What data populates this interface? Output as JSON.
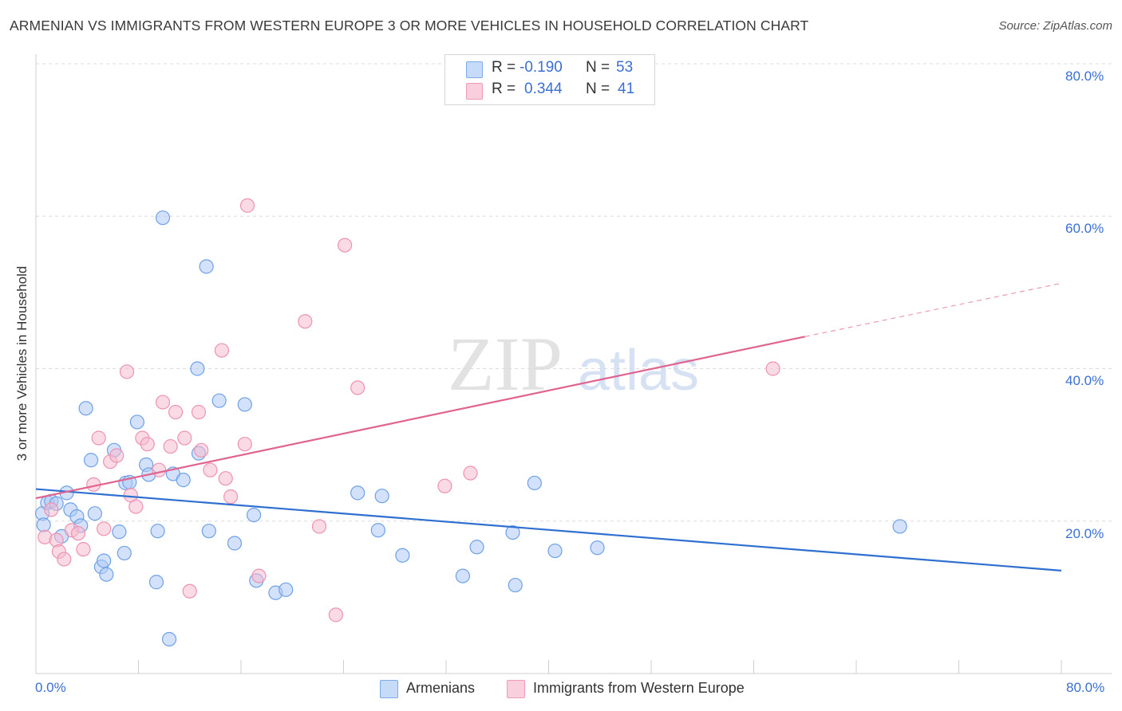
{
  "title": "ARMENIAN VS IMMIGRANTS FROM WESTERN EUROPE 3 OR MORE VEHICLES IN HOUSEHOLD CORRELATION CHART",
  "source": "Source: ZipAtlas.com",
  "watermark": {
    "zip": "ZIP",
    "atlas": "atlas"
  },
  "legend": {
    "rows": [
      {
        "r_label": "R =",
        "r_value": "-0.190",
        "n_label": "N =",
        "n_value": "53",
        "color": "#aecbf5"
      },
      {
        "r_label": "R =",
        "r_value": "0.344",
        "n_label": "N =",
        "n_value": "41",
        "color": "#f6bcd0"
      }
    ]
  },
  "bottom_legend": {
    "armenians": "Armenians",
    "immigrants": "Immigrants from Western Europe"
  },
  "axis": {
    "x_min_label": "0.0%",
    "x_max_label": "80.0%",
    "y_ticks": [
      "80.0%",
      "60.0%",
      "40.0%",
      "20.0%"
    ]
  },
  "chart_data": {
    "type": "scatter",
    "title": "ARMENIAN VS IMMIGRANTS FROM WESTERN EUROPE 3 OR MORE VEHICLES IN HOUSEHOLD CORRELATION CHART",
    "xlabel": "",
    "ylabel": "3 or more Vehicles in Household",
    "xlim": [
      0,
      80
    ],
    "ylim": [
      0,
      80
    ],
    "grid": true,
    "series": [
      {
        "name": "Armenians",
        "color": "#6fa1e6",
        "fill": "#aecbf5",
        "r": -0.19,
        "n": 53,
        "trend": {
          "x": [
            0,
            80
          ],
          "y": [
            24.2,
            13.5
          ]
        },
        "points": [
          [
            0.5,
            21.0
          ],
          [
            0.6,
            19.5
          ],
          [
            0.9,
            22.4
          ],
          [
            1.2,
            22.6
          ],
          [
            1.6,
            22.3
          ],
          [
            2.0,
            18.0
          ],
          [
            2.4,
            23.7
          ],
          [
            2.7,
            21.5
          ],
          [
            3.2,
            20.6
          ],
          [
            3.5,
            19.4
          ],
          [
            3.9,
            34.8
          ],
          [
            4.3,
            28.0
          ],
          [
            4.6,
            21.0
          ],
          [
            5.1,
            14.0
          ],
          [
            5.3,
            14.8
          ],
          [
            5.5,
            13.0
          ],
          [
            6.1,
            29.3
          ],
          [
            6.5,
            18.6
          ],
          [
            6.9,
            15.8
          ],
          [
            7.0,
            25.0
          ],
          [
            7.3,
            25.1
          ],
          [
            7.9,
            33.0
          ],
          [
            8.6,
            27.4
          ],
          [
            8.8,
            26.1
          ],
          [
            9.5,
            18.7
          ],
          [
            9.4,
            12.0
          ],
          [
            9.9,
            59.8
          ],
          [
            10.4,
            4.5
          ],
          [
            10.7,
            26.2
          ],
          [
            11.5,
            25.4
          ],
          [
            12.7,
            28.9
          ],
          [
            12.6,
            40.0
          ],
          [
            13.3,
            53.4
          ],
          [
            13.5,
            18.7
          ],
          [
            14.3,
            35.8
          ],
          [
            15.5,
            17.1
          ],
          [
            16.3,
            35.3
          ],
          [
            17.0,
            20.8
          ],
          [
            17.2,
            12.2
          ],
          [
            18.7,
            10.6
          ],
          [
            19.5,
            11.0
          ],
          [
            25.1,
            23.7
          ],
          [
            26.7,
            18.8
          ],
          [
            27.0,
            23.3
          ],
          [
            28.6,
            15.5
          ],
          [
            33.3,
            12.8
          ],
          [
            34.4,
            16.6
          ],
          [
            37.2,
            18.5
          ],
          [
            37.4,
            11.6
          ],
          [
            38.9,
            25.0
          ],
          [
            40.5,
            16.1
          ],
          [
            43.8,
            16.5
          ],
          [
            67.4,
            19.3
          ]
        ]
      },
      {
        "name": "Immigrants from Western Europe",
        "color": "#ee92b1",
        "fill": "#f6bcd0",
        "r": 0.344,
        "n": 41,
        "trend": {
          "x": [
            0,
            60
          ],
          "y": [
            23.0,
            44.2
          ],
          "dash_to": {
            "x": 80,
            "y": 51.2
          }
        },
        "points": [
          [
            0.7,
            17.9
          ],
          [
            1.2,
            21.5
          ],
          [
            1.6,
            17.5
          ],
          [
            1.8,
            16.0
          ],
          [
            2.2,
            15.0
          ],
          [
            2.8,
            18.8
          ],
          [
            3.3,
            18.4
          ],
          [
            3.7,
            16.3
          ],
          [
            4.5,
            24.8
          ],
          [
            4.9,
            30.9
          ],
          [
            5.3,
            19.0
          ],
          [
            5.8,
            27.8
          ],
          [
            6.3,
            28.6
          ],
          [
            7.1,
            39.6
          ],
          [
            7.4,
            23.4
          ],
          [
            7.8,
            21.9
          ],
          [
            8.3,
            30.9
          ],
          [
            8.7,
            30.1
          ],
          [
            9.6,
            26.7
          ],
          [
            9.9,
            35.6
          ],
          [
            10.5,
            29.8
          ],
          [
            10.9,
            34.3
          ],
          [
            11.6,
            30.9
          ],
          [
            12.0,
            10.8
          ],
          [
            12.7,
            34.3
          ],
          [
            12.9,
            29.3
          ],
          [
            13.6,
            26.7
          ],
          [
            14.5,
            42.4
          ],
          [
            14.8,
            25.6
          ],
          [
            15.2,
            23.2
          ],
          [
            16.3,
            30.1
          ],
          [
            16.5,
            61.4
          ],
          [
            17.4,
            12.8
          ],
          [
            21.0,
            46.2
          ],
          [
            22.1,
            19.3
          ],
          [
            23.4,
            7.7
          ],
          [
            24.1,
            56.2
          ],
          [
            25.1,
            37.5
          ],
          [
            31.9,
            24.6
          ],
          [
            33.9,
            26.3
          ],
          [
            57.5,
            40.0
          ]
        ]
      }
    ]
  }
}
